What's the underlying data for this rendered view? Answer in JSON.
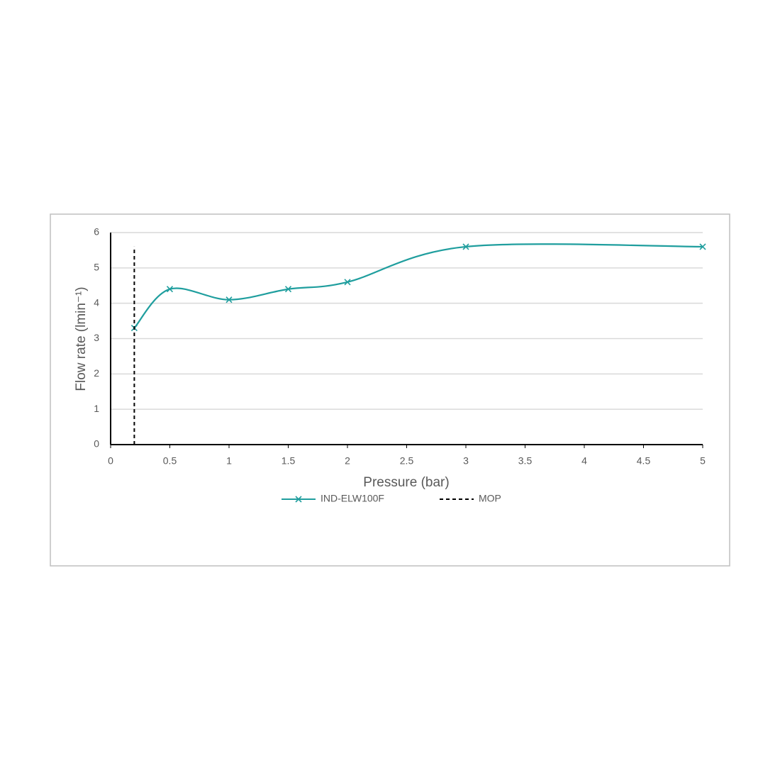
{
  "chart_data": {
    "type": "line",
    "x_label": "Pressure (bar)",
    "y_label": "Flow rate (lmin⁻¹)",
    "xlim": [
      0,
      5
    ],
    "xticks": [
      0,
      0.5,
      1,
      1.5,
      2,
      2.5,
      3,
      3.5,
      4,
      4.5,
      5
    ],
    "ylim": [
      0,
      6
    ],
    "yticks": [
      0,
      1,
      2,
      3,
      4,
      5,
      6
    ],
    "grid": true,
    "smooth": true,
    "series": [
      {
        "name": "IND-ELW100F",
        "color": "#1f9e9e",
        "marker": "x",
        "dashed": false,
        "x": [
          0.2,
          0.5,
          1,
          1.5,
          2,
          3,
          5
        ],
        "values": [
          3.3,
          4.4,
          4.1,
          4.4,
          4.6,
          5.6,
          5.6
        ]
      },
      {
        "name": "MOP",
        "color": "#000000",
        "marker": "none",
        "dashed": true,
        "x": [
          0.2,
          0.2
        ],
        "values": [
          0,
          5.6
        ]
      }
    ]
  }
}
